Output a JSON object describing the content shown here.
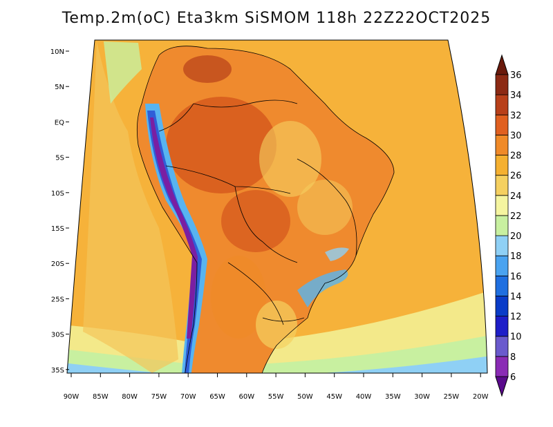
{
  "title": "Temp.2m(oC) Eta3km SiSMOM 118h 22Z22OCT2025",
  "lat_labels": [
    "10N",
    "5N",
    "EQ",
    "5S",
    "10S",
    "15S",
    "20S",
    "25S",
    "30S",
    "35S"
  ],
  "lon_labels": [
    "90W",
    "85W",
    "80W",
    "75W",
    "70W",
    "65W",
    "60W",
    "55W",
    "50W",
    "45W",
    "40W",
    "35W",
    "30W",
    "25W",
    "20W"
  ],
  "colorbar": {
    "levels": [
      "6",
      "8",
      "10",
      "12",
      "14",
      "16",
      "18",
      "20",
      "22",
      "24",
      "26",
      "28",
      "30",
      "32",
      "34",
      "36"
    ],
    "colors": [
      "#5a0a8c",
      "#8a2bb5",
      "#6a5acd",
      "#1e1ec8",
      "#0a3cc8",
      "#1f6fe0",
      "#4aa3f0",
      "#8fd0f5",
      "#c8f0a0",
      "#f5f5a0",
      "#f5d060",
      "#f5b030",
      "#f08a28",
      "#e06020",
      "#b8401a",
      "#8c2a14",
      "#6a1a0c"
    ]
  },
  "palette": {
    "ocean": "#f6b23a",
    "land": "#ef8a2e",
    "hot": "#d4561c",
    "andes_high": "#7a1fa2",
    "andes_mid": "#2f5ed8",
    "andes_low": "#58b4f0",
    "cool_coast": "#9fd8f5",
    "south_cool": "#f3e98a",
    "borders": "#000000"
  }
}
